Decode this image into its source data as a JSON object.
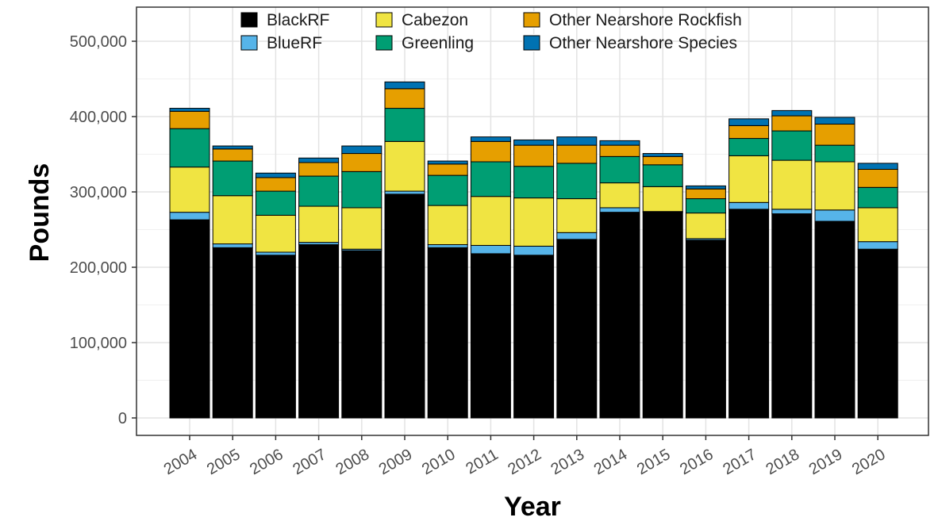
{
  "chart_data": {
    "type": "bar",
    "stacked": true,
    "title": "",
    "xlabel": "Year",
    "ylabel": "Pounds",
    "ylim": [
      0,
      550000
    ],
    "yticks": [
      0,
      100000,
      200000,
      300000,
      400000,
      500000
    ],
    "ytick_labels": [
      "0",
      "100,000",
      "200,000",
      "300,000",
      "400,000",
      "500,000"
    ],
    "grid": true,
    "legend_position": "top-inside",
    "categories": [
      "2004",
      "2005",
      "2006",
      "2007",
      "2008",
      "2009",
      "2010",
      "2011",
      "2012",
      "2013",
      "2014",
      "2015",
      "2016",
      "2017",
      "2018",
      "2019",
      "2020"
    ],
    "series": [
      {
        "name": "BlackRF",
        "color": "#000000",
        "values": [
          263000,
          226000,
          216000,
          230000,
          222000,
          297000,
          226000,
          218000,
          216000,
          237000,
          273000,
          273000,
          236000,
          277000,
          271000,
          261000,
          224000
        ]
      },
      {
        "name": "BlueRF",
        "color": "#56b4e9",
        "values": [
          10000,
          5000,
          4000,
          3000,
          2000,
          4000,
          4000,
          11000,
          12000,
          9000,
          6000,
          1000,
          2000,
          9000,
          6000,
          15000,
          10000
        ]
      },
      {
        "name": "Cabezon",
        "color": "#f0e442",
        "values": [
          60000,
          64000,
          49000,
          48000,
          55000,
          66000,
          52000,
          65000,
          64000,
          45000,
          33000,
          33000,
          34000,
          62000,
          65000,
          64000,
          45000
        ]
      },
      {
        "name": "Greenling",
        "color": "#009e73",
        "values": [
          51000,
          46000,
          32000,
          40000,
          48000,
          44000,
          40000,
          46000,
          42000,
          47000,
          35000,
          29000,
          19000,
          23000,
          39000,
          22000,
          27000
        ]
      },
      {
        "name": "Other Nearshore Rockfish",
        "color": "#e69f00",
        "values": [
          23000,
          16000,
          18000,
          18000,
          24000,
          26000,
          15000,
          27000,
          28000,
          24000,
          15000,
          11000,
          13000,
          17000,
          20000,
          28000,
          24000
        ]
      },
      {
        "name": "Other Nearshore Species",
        "color": "#0072b2",
        "values": [
          4000,
          4000,
          6000,
          6000,
          10000,
          9000,
          4000,
          6000,
          7000,
          11000,
          6000,
          4000,
          4000,
          9000,
          7000,
          9000,
          8000
        ]
      }
    ]
  }
}
